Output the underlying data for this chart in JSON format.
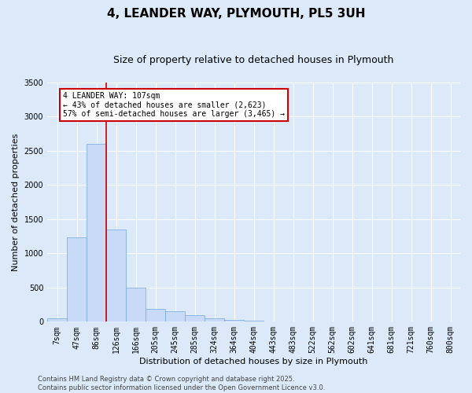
{
  "title": "4, LEANDER WAY, PLYMOUTH, PL5 3UH",
  "subtitle": "Size of property relative to detached houses in Plymouth",
  "xlabel": "Distribution of detached houses by size in Plymouth",
  "ylabel": "Number of detached properties",
  "categories": [
    "7sqm",
    "47sqm",
    "86sqm",
    "126sqm",
    "166sqm",
    "205sqm",
    "245sqm",
    "285sqm",
    "324sqm",
    "364sqm",
    "404sqm",
    "443sqm",
    "483sqm",
    "522sqm",
    "562sqm",
    "602sqm",
    "641sqm",
    "681sqm",
    "721sqm",
    "760sqm",
    "800sqm"
  ],
  "values": [
    50,
    1230,
    2600,
    1350,
    500,
    185,
    150,
    100,
    50,
    25,
    15,
    5,
    5,
    0,
    0,
    0,
    0,
    0,
    0,
    0,
    0
  ],
  "bar_color": "#c9daf8",
  "bar_edge_color": "#6fa8dc",
  "vline_color": "#cc0000",
  "annotation_text": "4 LEANDER WAY: 107sqm\n← 43% of detached houses are smaller (2,623)\n57% of semi-detached houses are larger (3,465) →",
  "annotation_box_color": "#ffffff",
  "annotation_box_edge": "#cc0000",
  "ylim": [
    0,
    3500
  ],
  "yticks": [
    0,
    500,
    1000,
    1500,
    2000,
    2500,
    3000,
    3500
  ],
  "footer_line1": "Contains HM Land Registry data © Crown copyright and database right 2025.",
  "footer_line2": "Contains public sector information licensed under the Open Government Licence v3.0.",
  "background_color": "#dce9f9",
  "plot_bg_color": "#dce9f9",
  "title_fontsize": 11,
  "subtitle_fontsize": 9,
  "tick_fontsize": 7,
  "ylabel_fontsize": 8,
  "xlabel_fontsize": 8,
  "footer_fontsize": 6
}
